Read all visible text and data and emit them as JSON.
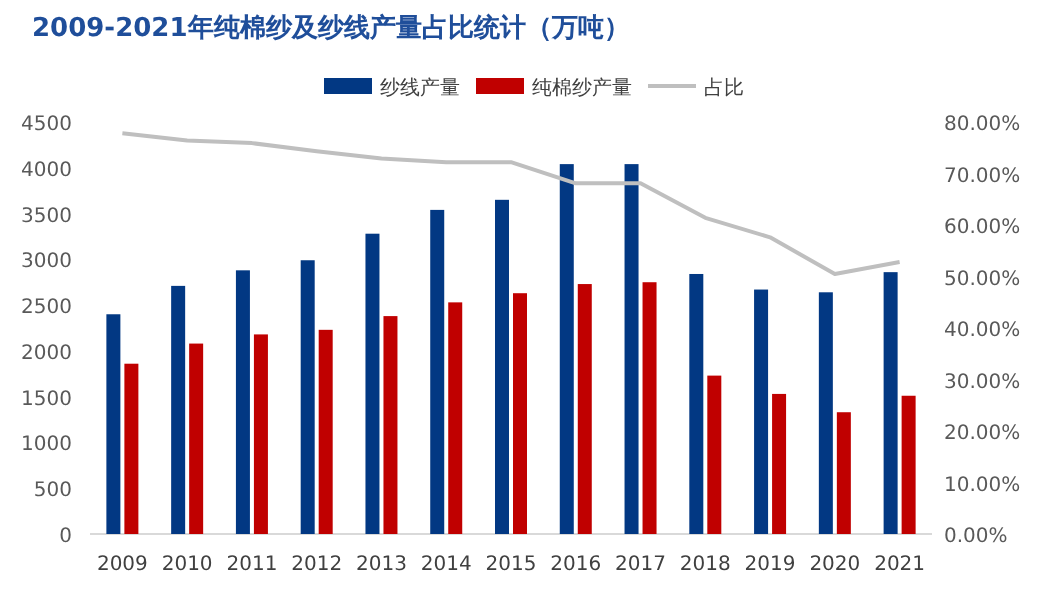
{
  "chart_data": {
    "type": "bar",
    "title": "2009-2021年纯棉纱及纱线产量占比统计（万吨）",
    "categories": [
      "2009",
      "2010",
      "2011",
      "2012",
      "2013",
      "2014",
      "2015",
      "2016",
      "2017",
      "2018",
      "2019",
      "2020",
      "2021"
    ],
    "series": [
      {
        "name": "纱线产量",
        "color": "#023883",
        "values": [
          2400,
          2710,
          2880,
          2990,
          3280,
          3540,
          3650,
          4040,
          4040,
          2840,
          2670,
          2640,
          2860
        ]
      },
      {
        "name": "纯棉纱产量",
        "color": "#c00000",
        "values": [
          1860,
          2080,
          2180,
          2230,
          2380,
          2530,
          2630,
          2730,
          2750,
          1730,
          1530,
          1330,
          1510
        ]
      },
      {
        "name": "占比",
        "type": "line",
        "axis": "y2",
        "color": "#bfbfbf",
        "values": [
          77.8,
          76.4,
          75.9,
          74.3,
          72.9,
          72.2,
          72.2,
          68.1,
          68.1,
          61.4,
          57.6,
          50.5,
          52.8
        ]
      }
    ],
    "ylim": [
      0,
      4500
    ],
    "yticks": [
      0,
      500,
      1000,
      1500,
      2000,
      2500,
      3000,
      3500,
      4000,
      4500
    ],
    "y2lim": [
      0,
      80
    ],
    "y2ticks": [
      {
        "value": 0,
        "label": "0.00%"
      },
      {
        "value": 10,
        "label": "10.00%"
      },
      {
        "value": 20,
        "label": "20.00%"
      },
      {
        "value": 30,
        "label": "30.00%"
      },
      {
        "value": 40,
        "label": "40.00%"
      },
      {
        "value": 50,
        "label": "50.00%"
      },
      {
        "value": 60,
        "label": "60.00%"
      },
      {
        "value": 70,
        "label": "70.00%"
      },
      {
        "value": 80,
        "label": "80.00%"
      }
    ],
    "legend": "top",
    "grid": false,
    "marker": "none"
  }
}
